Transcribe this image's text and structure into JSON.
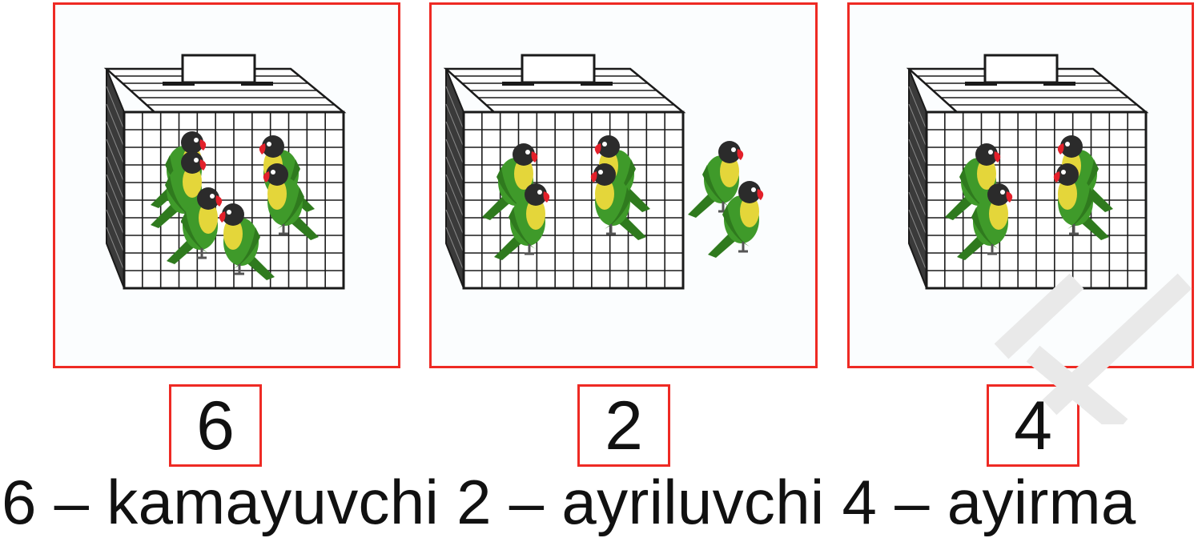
{
  "panels": [
    {
      "id": "minuend",
      "birds_in_cage": 6,
      "birds_outside": 0,
      "number": "6"
    },
    {
      "id": "subtrahend",
      "birds_in_cage": 4,
      "birds_outside": 2,
      "number": "2"
    },
    {
      "id": "difference",
      "birds_in_cage": 4,
      "birds_outside": 0,
      "number": "4"
    }
  ],
  "caption": "6 – kamayuvchi 2 – ayriluvchi 4 – ayirma",
  "colors": {
    "border": "#ee2a24",
    "bird_green": "#3f9a2a",
    "bird_yellow": "#e4d63a",
    "bird_head": "#2b2b2b",
    "bird_beak": "#e3202a",
    "cage_line": "#1a1a1a"
  }
}
